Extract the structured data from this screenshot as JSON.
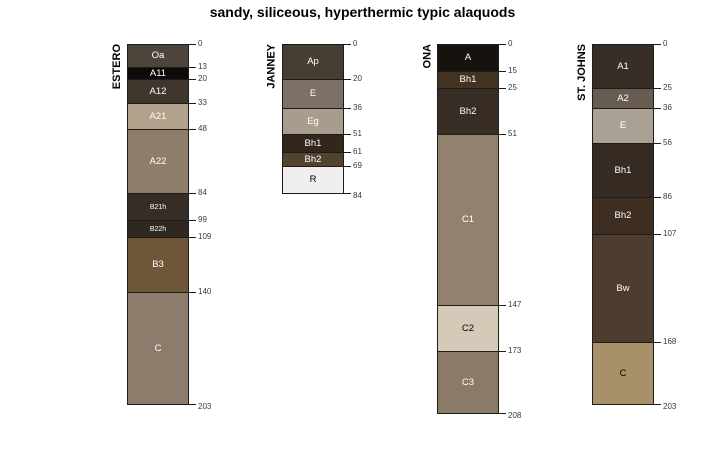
{
  "title": "sandy, siliceous, hyperthermic typic alaquods",
  "chart_data": {
    "type": "bar",
    "subtype": "soil-profile-columns",
    "depth_unit": "cm",
    "ylim": [
      0,
      208
    ],
    "grid": false,
    "legend": "none",
    "profiles": [
      {
        "id": "ESTERO",
        "horizons": [
          {
            "name": "Oa",
            "top": 0,
            "bottom": 13,
            "color": "#4d443c",
            "label_color": "#ffffff"
          },
          {
            "name": "A11",
            "top": 13,
            "bottom": 20,
            "color": "#0c0b09",
            "label_color": "#ffffff"
          },
          {
            "name": "A12",
            "top": 20,
            "bottom": 33,
            "color": "#3f372e",
            "label_color": "#ffffff"
          },
          {
            "name": "A21",
            "top": 33,
            "bottom": 48,
            "color": "#b2a28b",
            "label_color": "#ffffff"
          },
          {
            "name": "A22",
            "top": 48,
            "bottom": 84,
            "color": "#8d7d6b",
            "label_color": "#ffffff"
          },
          {
            "name": "B21h",
            "top": 84,
            "bottom": 99,
            "color": "#362e26",
            "label_color": "#ffffff"
          },
          {
            "name": "B22h",
            "top": 99,
            "bottom": 109,
            "color": "#2f2820",
            "label_color": "#ffffff"
          },
          {
            "name": "B3",
            "top": 109,
            "bottom": 140,
            "color": "#6f5639",
            "label_color": "#ffffff"
          },
          {
            "name": "C",
            "top": 140,
            "bottom": 203,
            "color": "#8d7c6b",
            "label_color": "#ffffff"
          }
        ]
      },
      {
        "id": "JANNEY",
        "horizons": [
          {
            "name": "Ap",
            "top": 0,
            "bottom": 20,
            "color": "#463d33",
            "label_color": "#ffffff"
          },
          {
            "name": "E",
            "top": 20,
            "bottom": 36,
            "color": "#7e7064",
            "label_color": "#ffffff"
          },
          {
            "name": "Eg",
            "top": 36,
            "bottom": 51,
            "color": "#a89c8c",
            "label_color": "#ffffff"
          },
          {
            "name": "Bh1",
            "top": 51,
            "bottom": 61,
            "color": "#33271c",
            "label_color": "#ffffff"
          },
          {
            "name": "Bh2",
            "top": 61,
            "bottom": 69,
            "color": "#544230",
            "label_color": "#ffffff"
          },
          {
            "name": "R",
            "top": 69,
            "bottom": 84,
            "color": "#f1efed",
            "label_color": "#000000"
          }
        ]
      },
      {
        "id": "ONA",
        "horizons": [
          {
            "name": "A",
            "top": 0,
            "bottom": 15,
            "color": "#16120e",
            "label_color": "#ffffff"
          },
          {
            "name": "Bh1",
            "top": 15,
            "bottom": 25,
            "color": "#443320",
            "label_color": "#ffffff"
          },
          {
            "name": "Bh2",
            "top": 25,
            "bottom": 51,
            "color": "#372d25",
            "label_color": "#ffffff"
          },
          {
            "name": "C1",
            "top": 51,
            "bottom": 147,
            "color": "#92816c",
            "label_color": "#ffffff"
          },
          {
            "name": "C2",
            "top": 147,
            "bottom": 173,
            "color": "#d4cab7",
            "label_color": "#000000"
          },
          {
            "name": "C3",
            "top": 173,
            "bottom": 208,
            "color": "#8a7a66",
            "label_color": "#ffffff"
          }
        ]
      },
      {
        "id": "ST. JOHNS",
        "horizons": [
          {
            "name": "A1",
            "top": 0,
            "bottom": 25,
            "color": "#362e27",
            "label_color": "#ffffff"
          },
          {
            "name": "A2",
            "top": 25,
            "bottom": 36,
            "color": "#675c4f",
            "label_color": "#ffffff"
          },
          {
            "name": "E",
            "top": 36,
            "bottom": 56,
            "color": "#a9a194",
            "label_color": "#ffffff"
          },
          {
            "name": "Bh1",
            "top": 56,
            "bottom": 86,
            "color": "#352b22",
            "label_color": "#ffffff"
          },
          {
            "name": "Bh2",
            "top": 86,
            "bottom": 107,
            "color": "#3e2d21",
            "label_color": "#ffffff"
          },
          {
            "name": "Bw",
            "top": 107,
            "bottom": 168,
            "color": "#4e3d2e",
            "label_color": "#ffffff"
          },
          {
            "name": "C",
            "top": 168,
            "bottom": 203,
            "color": "#a89168",
            "label_color": "#000000"
          }
        ]
      }
    ]
  }
}
